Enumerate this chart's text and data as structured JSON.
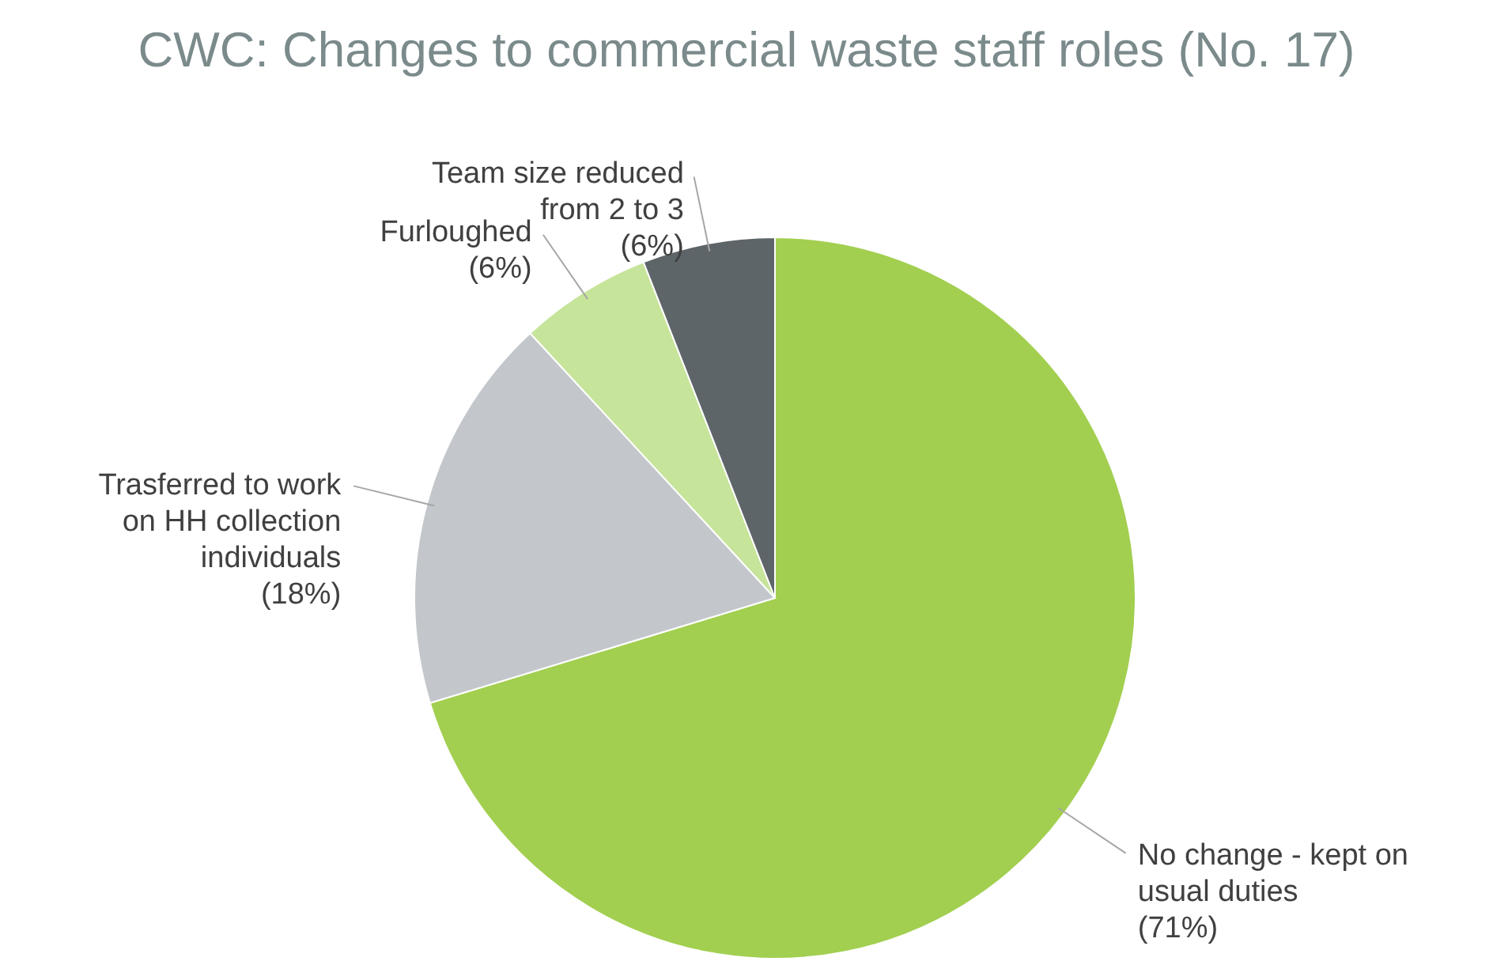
{
  "chart_data": {
    "type": "pie",
    "title": "CWC: Changes to commercial waste staff roles (No. 17)",
    "categories": [
      "No change - kept on usual duties",
      "Trasferred to work on HH collection individuals",
      "Furloughed",
      "Team size reduced from 2 to 3"
    ],
    "values": [
      71,
      18,
      6,
      6
    ],
    "value_labels": [
      "(71%)",
      "(18%)",
      "(6%)",
      "(6%)"
    ],
    "colors": [
      "#a2cf50",
      "#c3c7cb",
      "#c6e49a",
      "#5e6569"
    ]
  }
}
